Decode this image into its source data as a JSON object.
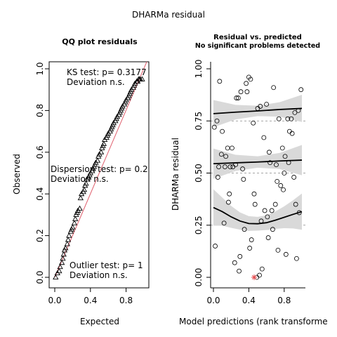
{
  "page_title": "DHARMa residual",
  "chart_data": [
    {
      "type": "scatter",
      "title": "QQ plot residuals",
      "xlabel": "Expected",
      "ylabel": "Observed",
      "xlim": [
        0,
        1
      ],
      "ylim": [
        0,
        1
      ],
      "x_ticks": [
        0.0,
        0.4,
        0.8
      ],
      "x_tick_labels": [
        "0.0",
        "0.4",
        "0.8"
      ],
      "y_ticks": [
        0.0,
        0.2,
        0.4,
        0.6,
        0.8,
        1.0
      ],
      "y_tick_labels": [
        "0.0",
        "0.2",
        "0.4",
        "0.6",
        "0.8",
        "1.0"
      ],
      "marker": "triangle",
      "reference_line": {
        "x": [
          0,
          1
        ],
        "y": [
          0,
          1
        ],
        "color": "#e0606e"
      },
      "annotations": [
        {
          "line1": "KS test: p= 0.3177",
          "line2": "Deviation  n.s."
        },
        {
          "line1": "Dispersion test: p= 0.2",
          "line2": "Deviation  n.s."
        },
        {
          "line1": "Outlier test: p= 1",
          "line2": "Deviation  n.s."
        }
      ],
      "points": {
        "x": [
          0.01,
          0.03,
          0.05,
          0.06,
          0.08,
          0.09,
          0.1,
          0.11,
          0.12,
          0.14,
          0.15,
          0.16,
          0.18,
          0.19,
          0.2,
          0.22,
          0.23,
          0.24,
          0.25,
          0.26,
          0.28,
          0.29,
          0.3,
          0.32,
          0.33,
          0.34,
          0.35,
          0.36,
          0.38,
          0.39,
          0.4,
          0.42,
          0.43,
          0.44,
          0.45,
          0.46,
          0.48,
          0.49,
          0.5,
          0.52,
          0.53,
          0.54,
          0.55,
          0.56,
          0.58,
          0.59,
          0.6,
          0.62,
          0.63,
          0.64,
          0.65,
          0.66,
          0.68,
          0.69,
          0.7,
          0.72,
          0.73,
          0.74,
          0.75,
          0.76,
          0.78,
          0.79,
          0.8,
          0.82,
          0.83,
          0.84,
          0.85,
          0.86,
          0.88,
          0.89,
          0.9,
          0.92,
          0.93,
          0.94,
          0.95,
          0.96,
          0.98
        ],
        "y": [
          0.0,
          0.02,
          0.03,
          0.05,
          0.07,
          0.09,
          0.11,
          0.13,
          0.14,
          0.16,
          0.18,
          0.2,
          0.22,
          0.23,
          0.24,
          0.26,
          0.28,
          0.3,
          0.31,
          0.32,
          0.33,
          0.38,
          0.4,
          0.41,
          0.42,
          0.44,
          0.45,
          0.47,
          0.48,
          0.49,
          0.5,
          0.51,
          0.52,
          0.53,
          0.54,
          0.55,
          0.56,
          0.58,
          0.59,
          0.6,
          0.62,
          0.63,
          0.64,
          0.66,
          0.67,
          0.68,
          0.69,
          0.7,
          0.71,
          0.72,
          0.73,
          0.74,
          0.75,
          0.76,
          0.77,
          0.78,
          0.79,
          0.8,
          0.81,
          0.82,
          0.83,
          0.84,
          0.85,
          0.86,
          0.87,
          0.88,
          0.89,
          0.9,
          0.91,
          0.92,
          0.93,
          0.94,
          0.94,
          0.95,
          0.95,
          0.95,
          0.95
        ]
      }
    },
    {
      "type": "scatter",
      "title": "Residual vs. predicted",
      "subtitle": "No significant problems detected",
      "xlabel": "Model predictions (rank transforme",
      "ylabel": "DHARMa residual",
      "xlim": [
        0,
        1
      ],
      "ylim": [
        0,
        1
      ],
      "x_ticks": [
        0.0,
        0.4,
        0.8
      ],
      "x_tick_labels": [
        "0.0",
        "0.4",
        "0.8"
      ],
      "y_ticks": [
        0.0,
        0.25,
        0.5,
        0.75,
        1.0
      ],
      "y_tick_labels": [
        "0.00",
        "0.25",
        "0.50",
        "0.75",
        "1.00"
      ],
      "grid_h_dashed": [
        0.25,
        0.5,
        0.75
      ],
      "marker": "circle",
      "points": {
        "x": [
          0.01,
          0.04,
          0.07,
          0.1,
          0.13,
          0.16,
          0.19,
          0.22,
          0.25,
          0.28,
          0.31,
          0.34,
          0.37,
          0.4,
          0.43,
          0.46,
          0.49,
          0.52,
          0.55,
          0.58,
          0.61,
          0.64,
          0.67,
          0.7,
          0.73,
          0.76,
          0.79,
          0.82,
          0.85,
          0.88,
          0.91,
          0.94,
          0.97,
          0.02,
          0.06,
          0.09,
          0.14,
          0.18,
          0.21,
          0.26,
          0.3,
          0.33,
          0.38,
          0.42,
          0.45,
          0.5,
          0.53,
          0.57,
          0.6,
          0.63,
          0.68,
          0.71,
          0.74,
          0.78,
          0.81,
          0.84,
          0.89,
          0.92,
          0.96,
          0.99,
          0.05,
          0.12,
          0.17,
          0.24,
          0.29,
          0.35,
          0.41,
          0.47,
          0.54,
          0.62,
          0.66,
          0.72,
          0.8,
          0.86,
          0.93
        ],
        "y": [
          0.72,
          0.75,
          0.94,
          0.7,
          0.53,
          0.62,
          0.53,
          0.53,
          0.54,
          0.86,
          0.89,
          0.47,
          0.93,
          0.96,
          0.18,
          0.4,
          0.0,
          0.01,
          0.04,
          0.32,
          0.29,
          0.55,
          0.23,
          0.35,
          0.13,
          0.44,
          0.42,
          0.11,
          0.55,
          0.76,
          0.48,
          0.09,
          0.31,
          0.15,
          0.53,
          0.59,
          0.58,
          0.4,
          0.62,
          0.86,
          0.1,
          0.52,
          0.89,
          0.95,
          0.74,
          0.81,
          0.82,
          0.67,
          0.83,
          0.6,
          0.91,
          0.54,
          0.76,
          0.62,
          0.58,
          0.76,
          0.69,
          0.79,
          0.8,
          0.9,
          0.48,
          0.26,
          0.36,
          0.07,
          0.03,
          0.23,
          0.14,
          0.35,
          0.27,
          0.19,
          0.32,
          0.46,
          0.5,
          0.7,
          0.35
        ]
      },
      "outliers": {
        "x": [
          0.46
        ],
        "y": [
          0.0
        ],
        "color": "#e8484b"
      },
      "quantile_fits": [
        {
          "x": [
            0.0,
            0.25,
            0.5,
            0.75,
            1.0
          ],
          "y": [
            0.785,
            0.792,
            0.798,
            0.805,
            0.81
          ]
        },
        {
          "x": [
            0.0,
            0.25,
            0.5,
            0.75,
            1.0
          ],
          "y": [
            0.545,
            0.549,
            0.553,
            0.558,
            0.562
          ]
        },
        {
          "x": [
            0.0,
            0.1,
            0.2,
            0.3,
            0.4,
            0.5,
            0.6,
            0.7,
            0.8,
            0.9,
            1.0
          ],
          "y": [
            0.335,
            0.315,
            0.29,
            0.27,
            0.258,
            0.257,
            0.262,
            0.274,
            0.288,
            0.302,
            0.315
          ]
        }
      ]
    }
  ]
}
